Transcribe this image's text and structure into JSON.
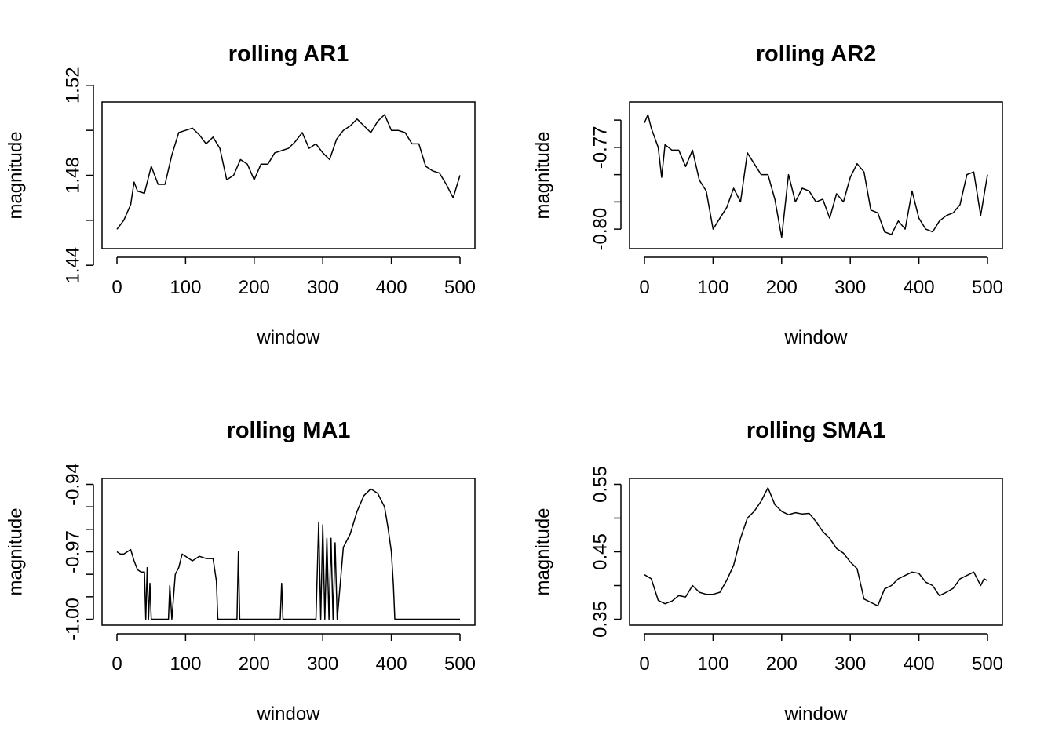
{
  "chart_data": [
    {
      "type": "line",
      "title": "rolling AR1",
      "xlabel": "window",
      "ylabel": "magnitude",
      "xlim": [
        0,
        500
      ],
      "ylim": [
        1.45,
        1.51
      ],
      "xticks": [
        0,
        100,
        200,
        300,
        400,
        500
      ],
      "xtick_labels": [
        "0",
        "100",
        "200",
        "300",
        "400",
        "500"
      ],
      "yticks": [
        1.44,
        1.46,
        1.48,
        1.5,
        1.52
      ],
      "ytick_labels": [
        "1.44",
        "",
        "1.48",
        "",
        "1.52"
      ],
      "grid": false,
      "series": [
        {
          "x": [
            0,
            10,
            20,
            25,
            30,
            40,
            50,
            60,
            70,
            80,
            90,
            100,
            110,
            120,
            130,
            140,
            150,
            160,
            170,
            180,
            190,
            200,
            210,
            220,
            230,
            240,
            250,
            260,
            270,
            280,
            290,
            300,
            310,
            320,
            330,
            340,
            350,
            360,
            370,
            380,
            390,
            400,
            410,
            420,
            430,
            440,
            450,
            460,
            470,
            480,
            490,
            500
          ],
          "y": [
            1.456,
            1.46,
            1.467,
            1.477,
            1.473,
            1.472,
            1.484,
            1.476,
            1.476,
            1.489,
            1.499,
            1.5,
            1.501,
            1.498,
            1.494,
            1.497,
            1.492,
            1.478,
            1.48,
            1.487,
            1.485,
            1.478,
            1.485,
            1.485,
            1.49,
            1.491,
            1.492,
            1.495,
            1.499,
            1.492,
            1.494,
            1.49,
            1.487,
            1.496,
            1.5,
            1.502,
            1.505,
            1.502,
            1.499,
            1.504,
            1.507,
            1.5,
            1.5,
            1.499,
            1.494,
            1.494,
            1.484,
            1.482,
            1.481,
            1.476,
            1.47,
            1.48
          ]
        }
      ]
    },
    {
      "type": "line",
      "title": "rolling AR2",
      "xlabel": "window",
      "ylabel": "magnitude",
      "xlim": [
        0,
        500
      ],
      "ylim": [
        -0.805,
        -0.7555
      ],
      "xticks": [
        0,
        100,
        200,
        300,
        400,
        500
      ],
      "xtick_labels": [
        "0",
        "100",
        "200",
        "300",
        "400",
        "500"
      ],
      "yticks": [
        -0.8,
        -0.79,
        -0.78,
        -0.77,
        -0.76
      ],
      "ytick_labels": [
        "-0.80",
        "",
        "",
        "-0.77",
        ""
      ],
      "grid": false,
      "series": [
        {
          "x": [
            0,
            5,
            10,
            20,
            25,
            30,
            40,
            50,
            60,
            70,
            80,
            90,
            100,
            110,
            120,
            130,
            140,
            150,
            160,
            170,
            180,
            190,
            200,
            210,
            220,
            230,
            240,
            250,
            260,
            270,
            280,
            290,
            300,
            310,
            320,
            330,
            340,
            350,
            360,
            370,
            380,
            390,
            400,
            410,
            420,
            430,
            440,
            450,
            460,
            470,
            480,
            490,
            500
          ],
          "y": [
            -0.761,
            -0.758,
            -0.763,
            -0.77,
            -0.781,
            -0.769,
            -0.771,
            -0.771,
            -0.777,
            -0.771,
            -0.782,
            -0.786,
            -0.8,
            -0.796,
            -0.792,
            -0.785,
            -0.79,
            -0.772,
            -0.776,
            -0.78,
            -0.78,
            -0.789,
            -0.803,
            -0.78,
            -0.79,
            -0.785,
            -0.786,
            -0.79,
            -0.789,
            -0.796,
            -0.787,
            -0.79,
            -0.781,
            -0.776,
            -0.779,
            -0.793,
            -0.794,
            -0.801,
            -0.802,
            -0.797,
            -0.8,
            -0.786,
            -0.796,
            -0.8,
            -0.801,
            -0.797,
            -0.795,
            -0.794,
            -0.791,
            -0.78,
            -0.779,
            -0.795,
            -0.78
          ]
        }
      ]
    },
    {
      "type": "line",
      "title": "rolling MA1",
      "xlabel": "window",
      "ylabel": "magnitude",
      "xlim": [
        0,
        500
      ],
      "ylim": [
        -1.0,
        -0.94
      ],
      "xticks": [
        0,
        100,
        200,
        300,
        400,
        500
      ],
      "xtick_labels": [
        "0",
        "100",
        "200",
        "300",
        "400",
        "500"
      ],
      "yticks": [
        -1.0,
        -0.99,
        -0.98,
        -0.97,
        -0.96,
        -0.95,
        -0.94
      ],
      "ytick_labels": [
        "-1.00",
        "",
        "",
        "-0.97",
        "",
        "",
        "-0.94"
      ],
      "grid": false,
      "series": [
        {
          "x": [
            0,
            5,
            10,
            15,
            20,
            25,
            30,
            35,
            40,
            42,
            44,
            46,
            48,
            50,
            52,
            75,
            77,
            80,
            85,
            90,
            95,
            100,
            110,
            120,
            130,
            140,
            145,
            147,
            150,
            175,
            177,
            179,
            181,
            200,
            230,
            238,
            240,
            242,
            290,
            294,
            297,
            300,
            303,
            306,
            309,
            312,
            315,
            318,
            321,
            330,
            340,
            350,
            360,
            370,
            380,
            390,
            395,
            400,
            403,
            405,
            410,
            450,
            500
          ],
          "y": [
            -0.97,
            -0.971,
            -0.971,
            -0.97,
            -0.969,
            -0.974,
            -0.978,
            -0.979,
            -0.979,
            -1.0,
            -0.977,
            -1.0,
            -0.984,
            -1.0,
            -1.0,
            -1.0,
            -0.985,
            -1.0,
            -0.98,
            -0.977,
            -0.971,
            -0.972,
            -0.974,
            -0.972,
            -0.973,
            -0.973,
            -0.983,
            -1.0,
            -1.0,
            -1.0,
            -0.97,
            -1.0,
            -1.0,
            -1.0,
            -1.0,
            -1.0,
            -0.984,
            -1.0,
            -1.0,
            -0.957,
            -1.0,
            -0.958,
            -1.0,
            -0.964,
            -1.0,
            -0.964,
            -1.0,
            -0.966,
            -1.0,
            -0.968,
            -0.962,
            -0.952,
            -0.945,
            -0.942,
            -0.944,
            -0.95,
            -0.959,
            -0.97,
            -0.985,
            -1.0,
            -1.0,
            -1.0,
            -1.0
          ]
        }
      ]
    },
    {
      "type": "line",
      "title": "rolling SMA1",
      "xlabel": "window",
      "ylabel": "magnitude",
      "xlim": [
        0,
        500
      ],
      "ylim": [
        0.35,
        0.55
      ],
      "xticks": [
        0,
        100,
        200,
        300,
        400,
        500
      ],
      "xtick_labels": [
        "0",
        "100",
        "200",
        "300",
        "400",
        "500"
      ],
      "yticks": [
        0.35,
        0.4,
        0.45,
        0.5,
        0.55
      ],
      "ytick_labels": [
        "0.35",
        "",
        "0.45",
        "",
        "0.55"
      ],
      "grid": false,
      "series": [
        {
          "x": [
            0,
            10,
            20,
            30,
            40,
            50,
            60,
            70,
            80,
            90,
            100,
            110,
            120,
            130,
            140,
            150,
            160,
            170,
            180,
            190,
            200,
            210,
            220,
            230,
            240,
            250,
            260,
            270,
            280,
            290,
            300,
            310,
            320,
            330,
            340,
            350,
            360,
            370,
            380,
            390,
            400,
            410,
            420,
            430,
            440,
            450,
            460,
            470,
            480,
            490,
            495,
            500
          ],
          "y": [
            0.416,
            0.41,
            0.378,
            0.373,
            0.377,
            0.385,
            0.383,
            0.4,
            0.39,
            0.387,
            0.387,
            0.39,
            0.408,
            0.43,
            0.47,
            0.5,
            0.51,
            0.525,
            0.545,
            0.52,
            0.51,
            0.505,
            0.508,
            0.506,
            0.507,
            0.495,
            0.48,
            0.47,
            0.455,
            0.448,
            0.435,
            0.425,
            0.38,
            0.375,
            0.37,
            0.395,
            0.4,
            0.41,
            0.415,
            0.42,
            0.418,
            0.405,
            0.4,
            0.385,
            0.39,
            0.396,
            0.41,
            0.415,
            0.42,
            0.4,
            0.41,
            0.407
          ]
        }
      ]
    }
  ]
}
